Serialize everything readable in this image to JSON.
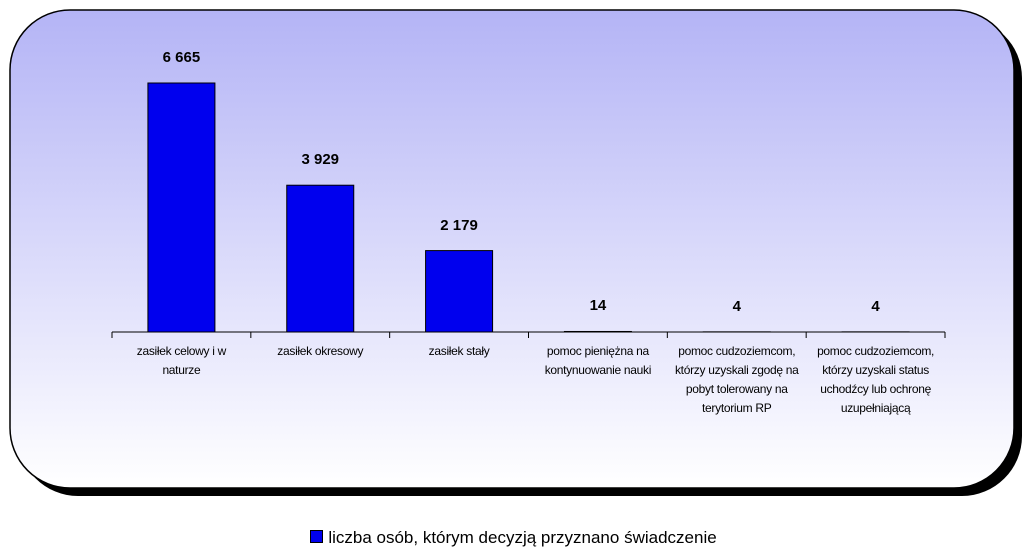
{
  "chart_data": {
    "type": "bar",
    "categories": [
      "zasiłek celowy i w naturze",
      "zasiłek okresowy",
      "zasiłek stały",
      "pomoc pieniężna na kontynuowanie nauki",
      "pomoc cudzoziemcom, którzy uzyskali zgodę na pobyt tolerowany na terytorium RP",
      "pomoc cudzoziemcom, którzy uzyskali status uchodźcy lub ochronę uzupełniającą"
    ],
    "series": [
      {
        "name": "liczba osób, którym decyzją przyznano świadczenie",
        "color": "#0000ee",
        "values": [
          6665,
          3929,
          2179,
          14,
          4,
          4
        ],
        "value_labels": [
          "6 665",
          "3 929",
          "2 179",
          "14",
          "4",
          "4"
        ]
      }
    ],
    "legend": "bottom"
  }
}
